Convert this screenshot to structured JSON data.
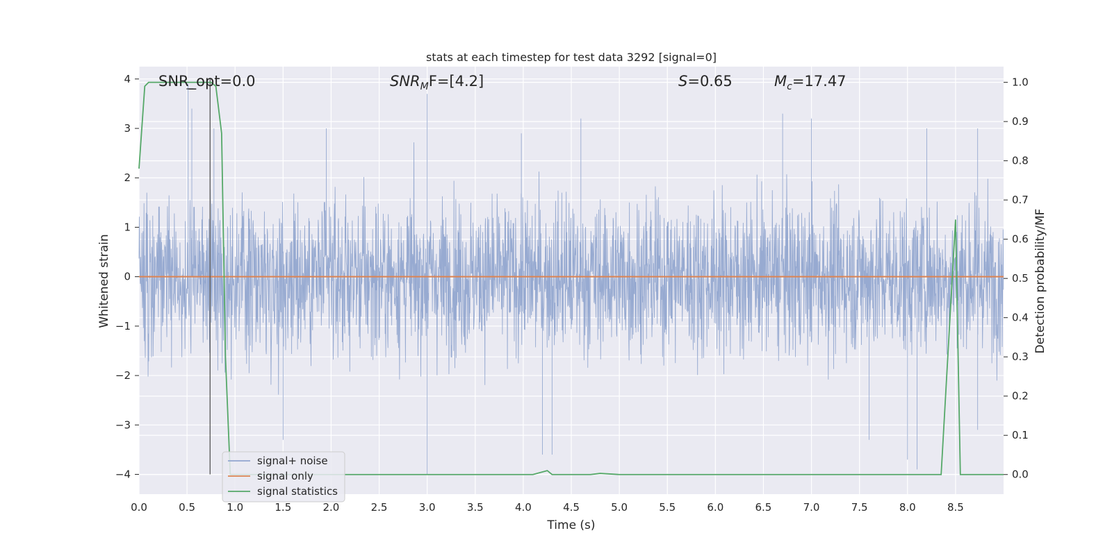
{
  "chart_data": {
    "type": "line",
    "title": "stats at each timestep for test data 3292 [signal=0]",
    "xlabel": "Time (s)",
    "ylabel": "Whitened strain",
    "y2label": "Detection probability/MF",
    "xlim": [
      0.0,
      9.0
    ],
    "ylim": [
      -4.4,
      4.25
    ],
    "y2lim": [
      -0.05,
      1.04
    ],
    "xticks": [
      "0.0",
      "0.5",
      "1.0",
      "1.5",
      "2.0",
      "2.5",
      "3.0",
      "3.5",
      "4.0",
      "4.5",
      "5.0",
      "5.5",
      "6.0",
      "6.5",
      "7.0",
      "7.5",
      "8.0",
      "8.5"
    ],
    "yticks": [
      "4",
      "3",
      "2",
      "1",
      "0",
      "−1",
      "−2",
      "−3",
      "−4"
    ],
    "y2ticks": [
      "1.0",
      "0.9",
      "0.8",
      "0.7",
      "0.6",
      "0.5",
      "0.4",
      "0.3",
      "0.2",
      "0.1",
      "0.0"
    ],
    "grid": true,
    "legend_position": "lower-left",
    "annotations": {
      "snr_opt": "SNR_opt=0.0",
      "snr_mf_sym": "SNR",
      "snr_mf_sub": "M",
      "snr_mf_tail": "F=[4.2]",
      "s_sym": "S",
      "s_val": "=0.65",
      "mc_sym": "M",
      "mc_sub": "c",
      "mc_val": "=17.47"
    },
    "vline_x": 0.74,
    "series": [
      {
        "name": "signal+ noise",
        "color": "#92a6cf",
        "axis": "left",
        "noise_std": 0.78,
        "peaks": [
          [
            0.51,
            3.9
          ],
          [
            0.55,
            3.4
          ],
          [
            0.78,
            3.0
          ],
          [
            1.95,
            3.0
          ],
          [
            3.0,
            3.7
          ],
          [
            3.98,
            2.9
          ],
          [
            4.6,
            3.2
          ],
          [
            6.7,
            3.3
          ],
          [
            7.0,
            3.2
          ],
          [
            8.2,
            3.0
          ],
          [
            8.73,
            3.0
          ],
          [
            1.5,
            -3.3
          ],
          [
            3.0,
            -4.0
          ],
          [
            4.2,
            -3.6
          ],
          [
            4.3,
            -3.6
          ],
          [
            7.6,
            -3.3
          ],
          [
            8.0,
            -3.7
          ],
          [
            8.1,
            -3.9
          ],
          [
            8.73,
            -3.1
          ]
        ]
      },
      {
        "name": "signal only",
        "color": "#dd8452",
        "axis": "left",
        "value": 0.0
      },
      {
        "name": "signal statistics",
        "color": "#55a868",
        "axis": "right",
        "x": [
          0.0,
          0.06,
          0.1,
          0.2,
          0.5,
          0.75,
          0.8,
          0.86,
          0.9,
          0.95,
          1.5,
          4.1,
          4.25,
          4.3,
          4.7,
          4.8,
          5.0,
          8.35,
          8.5,
          8.55,
          8.62,
          9.0
        ],
        "y": [
          0.78,
          0.99,
          1.0,
          1.0,
          1.0,
          1.0,
          0.99,
          0.87,
          0.3,
          0.0,
          0.0,
          0.0,
          0.01,
          0.0,
          0.0,
          0.003,
          0.0,
          0.0,
          0.65,
          0.0,
          0.0,
          0.0
        ]
      }
    ]
  }
}
